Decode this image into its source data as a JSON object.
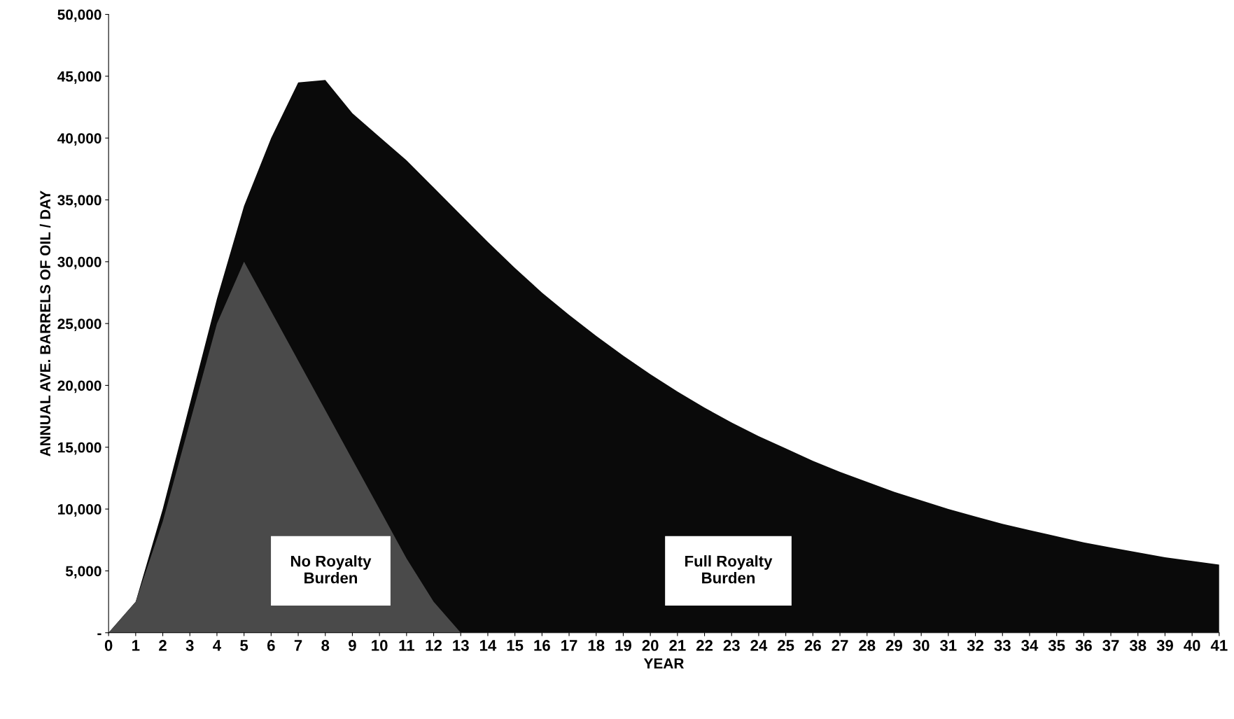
{
  "chart_data": {
    "type": "area",
    "xlabel": "YEAR",
    "ylabel": "ANNUAL AVE. BARRELS OF OIL / DAY",
    "x": [
      0,
      1,
      2,
      3,
      4,
      5,
      6,
      7,
      8,
      9,
      10,
      11,
      12,
      13,
      14,
      15,
      16,
      17,
      18,
      19,
      20,
      21,
      22,
      23,
      24,
      25,
      26,
      27,
      28,
      29,
      30,
      31,
      32,
      33,
      34,
      35,
      36,
      37,
      38,
      39,
      40,
      41
    ],
    "series": [
      {
        "color": "#0a0a0a",
        "values": [
          0,
          2500,
          10000,
          18500,
          27000,
          34500,
          40000,
          44500,
          44700,
          42000,
          40100,
          38200,
          36000,
          33800,
          31600,
          29500,
          27500,
          25700,
          24000,
          22400,
          20900,
          19500,
          18200,
          17000,
          15900,
          14900,
          13900,
          13000,
          12200,
          11400,
          10700,
          10000,
          9400,
          8800,
          8300,
          7800,
          7300,
          6900,
          6500,
          6100,
          5800,
          5500
        ]
      },
      {
        "color": "#4a4a4a",
        "x": [
          0,
          1,
          2,
          3,
          4,
          5,
          6,
          7,
          8,
          9,
          10,
          11,
          12,
          13
        ],
        "values": [
          0,
          2500,
          9000,
          17000,
          25000,
          30000,
          26000,
          22000,
          18000,
          14000,
          10000,
          6000,
          2500,
          0
        ]
      }
    ],
    "xlim": [
      0,
      41
    ],
    "ylim": [
      0,
      50000
    ],
    "xticks": [
      0,
      1,
      2,
      3,
      4,
      5,
      6,
      7,
      8,
      9,
      10,
      11,
      12,
      13,
      14,
      15,
      16,
      17,
      18,
      19,
      20,
      21,
      22,
      23,
      24,
      25,
      26,
      27,
      28,
      29,
      30,
      31,
      32,
      33,
      34,
      35,
      36,
      37,
      38,
      39,
      40,
      41
    ],
    "yticks": [
      {
        "value": 0,
        "label": "-"
      },
      {
        "value": 5000,
        "label": "5,000"
      },
      {
        "value": 10000,
        "label": "10,000"
      },
      {
        "value": 15000,
        "label": "15,000"
      },
      {
        "value": 20000,
        "label": "20,000"
      },
      {
        "value": 25000,
        "label": "25,000"
      },
      {
        "value": 30000,
        "label": "30,000"
      },
      {
        "value": 35000,
        "label": "35,000"
      },
      {
        "value": 40000,
        "label": "40,000"
      },
      {
        "value": 45000,
        "label": "45,000"
      },
      {
        "value": 50000,
        "label": "50,000"
      }
    ],
    "annotations": [
      "No Royalty\nBurden",
      "Full Royalty\nBurden"
    ],
    "grid": false,
    "legend": false
  }
}
